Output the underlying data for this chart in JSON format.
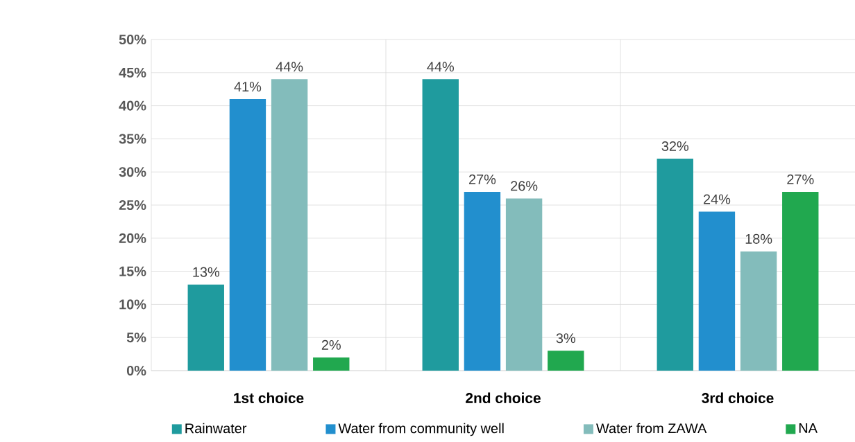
{
  "chart_data": {
    "type": "bar",
    "categories": [
      "1st choice",
      "2nd choice",
      "3rd choice"
    ],
    "series": [
      {
        "name": "Rainwater",
        "color": "#1f9b9e",
        "values": [
          13,
          44,
          32
        ],
        "value_labels": [
          "13%",
          "44%",
          "32%"
        ]
      },
      {
        "name": "Water from community well",
        "color": "#228fce",
        "values": [
          41,
          27,
          24
        ],
        "value_labels": [
          "41%",
          "27%",
          "24%"
        ]
      },
      {
        "name": "Water from ZAWA",
        "color": "#83bcbb",
        "values": [
          44,
          26,
          18
        ],
        "value_labels": [
          "44%",
          "26%",
          "18%"
        ]
      },
      {
        "name": "NA",
        "color": "#21a84f",
        "values": [
          2,
          3,
          27
        ],
        "value_labels": [
          "2%",
          "3%",
          "27%"
        ]
      }
    ],
    "ylim": [
      0,
      50
    ],
    "yticks": [
      {
        "value": 0,
        "label": "0%"
      },
      {
        "value": 5,
        "label": "5%"
      },
      {
        "value": 10,
        "label": "10%"
      },
      {
        "value": 15,
        "label": "15%"
      },
      {
        "value": 20,
        "label": "20%"
      },
      {
        "value": 25,
        "label": "25%"
      },
      {
        "value": 30,
        "label": "30%"
      },
      {
        "value": 35,
        "label": "35%"
      },
      {
        "value": 40,
        "label": "40%"
      },
      {
        "value": 45,
        "label": "45%"
      },
      {
        "value": 50,
        "label": "50%"
      }
    ],
    "grid": true,
    "legend": "bottom"
  }
}
